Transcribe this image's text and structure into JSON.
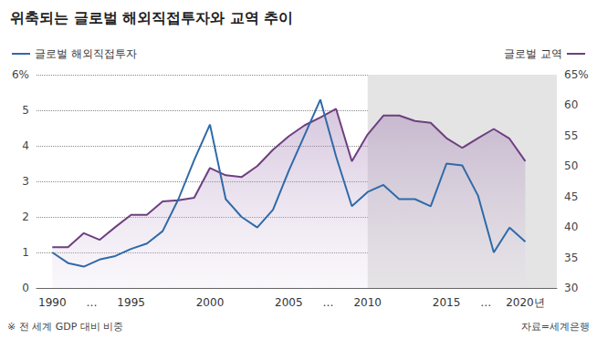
{
  "chart_data": {
    "type": "line",
    "title": "위축되는 글로벌 해외직접투자와 교역 추이",
    "note": "※ 전 세계 GDP 대비 비중",
    "source": "자료=세계은행",
    "legend": "top",
    "grid": true,
    "x": [
      1990,
      1991,
      1992,
      1993,
      1994,
      1995,
      1996,
      1997,
      1998,
      1999,
      2000,
      2001,
      2002,
      2003,
      2004,
      2005,
      2006,
      2007,
      2008,
      2009,
      2010,
      2011,
      2012,
      2013,
      2014,
      2015,
      2016,
      2017,
      2018,
      2019,
      2020
    ],
    "xlim": [
      1989,
      2022
    ],
    "xticks": [
      1990,
      {
        "value": 1992.5,
        "label": "…"
      },
      1995,
      2000,
      2005,
      {
        "value": 2007.5,
        "label": "…"
      },
      2010,
      2015,
      {
        "value": 2017.5,
        "label": "…"
      },
      {
        "value": 2020,
        "label": "2020년"
      }
    ],
    "ylim": [
      0,
      6
    ],
    "yticks": [
      0,
      1,
      2,
      3,
      4,
      5,
      {
        "value": 6,
        "label": "6%"
      }
    ],
    "y2lim": [
      30,
      65
    ],
    "y2ticks": [
      30,
      35,
      40,
      45,
      50,
      55,
      60,
      {
        "value": 65,
        "label": "65%"
      }
    ],
    "shaded_range": [
      2010,
      2022
    ],
    "series": [
      {
        "name": "글로벌 해외직접투자",
        "color": "#2f6aa8",
        "type": "line",
        "values": [
          1.0,
          0.7,
          0.6,
          0.8,
          0.9,
          1.1,
          1.25,
          1.6,
          2.5,
          3.6,
          4.6,
          2.5,
          2.0,
          1.7,
          2.2,
          3.3,
          4.3,
          5.3,
          3.7,
          2.3,
          2.7,
          2.9,
          2.5,
          2.5,
          2.3,
          3.5,
          3.45,
          2.6,
          1.0,
          1.7,
          1.3
        ]
      },
      {
        "name": "글로벌 교역",
        "color": "#6e3f80",
        "type": "area",
        "axis": "y2",
        "values": [
          36.7,
          36.7,
          39.0,
          37.9,
          40.0,
          42.0,
          42.0,
          44.2,
          44.4,
          44.8,
          49.7,
          48.5,
          48.2,
          50.0,
          52.7,
          54.9,
          56.7,
          58.0,
          59.4,
          50.8,
          55.2,
          58.3,
          58.3,
          57.4,
          57.1,
          54.6,
          53.0,
          54.6,
          56.1,
          54.5,
          50.8
        ]
      }
    ]
  }
}
